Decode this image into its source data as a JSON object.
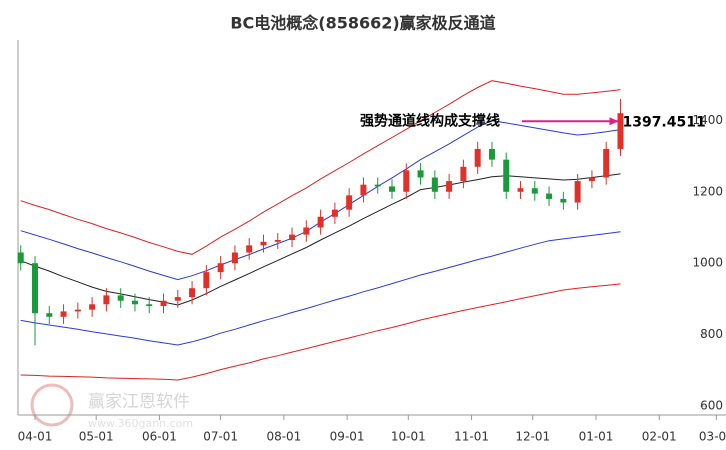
{
  "chart_data": {
    "type": "candlestick",
    "title": "BC电池概念(858662)赢家极反通道",
    "annotation": {
      "text": "强势通道线构成支撑线",
      "value": 1397.4511,
      "label": "1397.4511",
      "color": "#e0208a"
    },
    "watermark": {
      "name": "赢家江恩软件",
      "url": "www.360gann.com"
    },
    "ylim": [
      575,
      1625
    ],
    "yticks": [
      600,
      800,
      1000,
      1200,
      1400
    ],
    "xticks": [
      "04-01",
      "05-01",
      "06-01",
      "07-01",
      "08-01",
      "09-01",
      "10-01",
      "11-01",
      "12-01",
      "01-01",
      "02-01",
      "03-01"
    ],
    "x": [
      "03-25",
      "04-01",
      "04-08",
      "04-15",
      "04-22",
      "04-29",
      "05-06",
      "05-13",
      "05-20",
      "05-27",
      "06-03",
      "06-10",
      "06-17",
      "06-24",
      "07-01",
      "07-08",
      "07-15",
      "07-22",
      "07-29",
      "08-05",
      "08-12",
      "08-19",
      "08-26",
      "09-02",
      "09-09",
      "09-16",
      "09-23",
      "09-30",
      "10-07",
      "10-14",
      "10-21",
      "10-28",
      "11-04",
      "11-11",
      "11-18",
      "11-25",
      "12-02",
      "12-09",
      "12-16",
      "12-23",
      "12-30",
      "01-06",
      "01-13"
    ],
    "up_color": "#e0302a",
    "down_color": "#1a9a3a",
    "open": [
      1030,
      1000,
      860,
      850,
      865,
      870,
      885,
      910,
      895,
      885,
      880,
      895,
      905,
      930,
      975,
      1000,
      1030,
      1050,
      1060,
      1065,
      1080,
      1100,
      1130,
      1150,
      1190,
      1220,
      1215,
      1200,
      1260,
      1240,
      1200,
      1230,
      1270,
      1320,
      1290,
      1200,
      1210,
      1195,
      1180,
      1170,
      1230,
      1240,
      1320
    ],
    "high": [
      1050,
      1020,
      880,
      885,
      890,
      905,
      930,
      930,
      915,
      905,
      915,
      925,
      950,
      995,
      1020,
      1050,
      1070,
      1080,
      1085,
      1100,
      1120,
      1150,
      1170,
      1210,
      1240,
      1240,
      1235,
      1280,
      1280,
      1260,
      1250,
      1290,
      1340,
      1340,
      1310,
      1230,
      1230,
      1215,
      1200,
      1250,
      1260,
      1340,
      1460
    ],
    "low": [
      980,
      770,
      830,
      830,
      845,
      850,
      865,
      875,
      865,
      860,
      860,
      875,
      885,
      910,
      955,
      980,
      1010,
      1030,
      1040,
      1045,
      1060,
      1080,
      1110,
      1130,
      1170,
      1195,
      1180,
      1180,
      1220,
      1180,
      1180,
      1210,
      1250,
      1270,
      1180,
      1180,
      1175,
      1160,
      1150,
      1150,
      1210,
      1220,
      1300
    ],
    "close": [
      1000,
      860,
      850,
      865,
      870,
      885,
      910,
      895,
      885,
      880,
      895,
      905,
      930,
      975,
      1000,
      1030,
      1050,
      1060,
      1065,
      1080,
      1100,
      1130,
      1150,
      1190,
      1220,
      1215,
      1200,
      1260,
      1240,
      1200,
      1230,
      1270,
      1320,
      1290,
      1200,
      1210,
      1195,
      1180,
      1170,
      1230,
      1240,
      1320,
      1420
    ],
    "series": [
      {
        "color": "#e02020",
        "values": [
          1175,
          1162,
          1150,
          1136,
          1123,
          1111,
          1097,
          1085,
          1072,
          1058,
          1046,
          1033,
          1025,
          1048,
          1073,
          1095,
          1118,
          1143,
          1166,
          1189,
          1211,
          1236,
          1259,
          1282,
          1306,
          1329,
          1352,
          1375,
          1399,
          1422,
          1445,
          1470,
          1492,
          1511,
          1504,
          1496,
          1489,
          1481,
          1473,
          1473,
          1477,
          1481,
          1486
        ]
      },
      {
        "color": "#2a3ad8",
        "values": [
          1091,
          1079,
          1067,
          1054,
          1041,
          1029,
          1016,
          1004,
          991,
          978,
          966,
          954,
          965,
          979,
          995,
          1010,
          1024,
          1040,
          1055,
          1070,
          1089,
          1115,
          1139,
          1164,
          1190,
          1215,
          1239,
          1264,
          1290,
          1312,
          1334,
          1358,
          1381,
          1399,
          1393,
          1386,
          1379,
          1372,
          1365,
          1359,
          1363,
          1368,
          1374
        ]
      },
      {
        "color": "#222222",
        "values": [
          1007,
          992,
          978,
          962,
          948,
          933,
          921,
          914,
          906,
          898,
          891,
          883,
          897,
          915,
          935,
          953,
          971,
          990,
          1008,
          1026,
          1044,
          1065,
          1085,
          1104,
          1125,
          1145,
          1165,
          1184,
          1206,
          1212,
          1219,
          1227,
          1234,
          1242,
          1245,
          1242,
          1239,
          1236,
          1233,
          1235,
          1240,
          1245,
          1250
        ]
      },
      {
        "color": "#2a3ad8",
        "values": [
          840,
          833,
          827,
          821,
          815,
          808,
          802,
          796,
          790,
          783,
          777,
          771,
          780,
          791,
          804,
          815,
          827,
          839,
          850,
          862,
          873,
          885,
          897,
          908,
          920,
          931,
          943,
          955,
          967,
          977,
          988,
          999,
          1010,
          1020,
          1031,
          1042,
          1053,
          1063,
          1068,
          1073,
          1078,
          1083,
          1088
        ]
      },
      {
        "color": "#e02020",
        "values": [
          687,
          686,
          684,
          683,
          682,
          681,
          679,
          678,
          677,
          676,
          675,
          673,
          681,
          691,
          702,
          712,
          721,
          732,
          741,
          751,
          761,
          771,
          781,
          791,
          801,
          811,
          820,
          830,
          841,
          850,
          859,
          868,
          876,
          884,
          892,
          901,
          909,
          917,
          925,
          930,
          934,
          938,
          942
        ]
      }
    ]
  }
}
